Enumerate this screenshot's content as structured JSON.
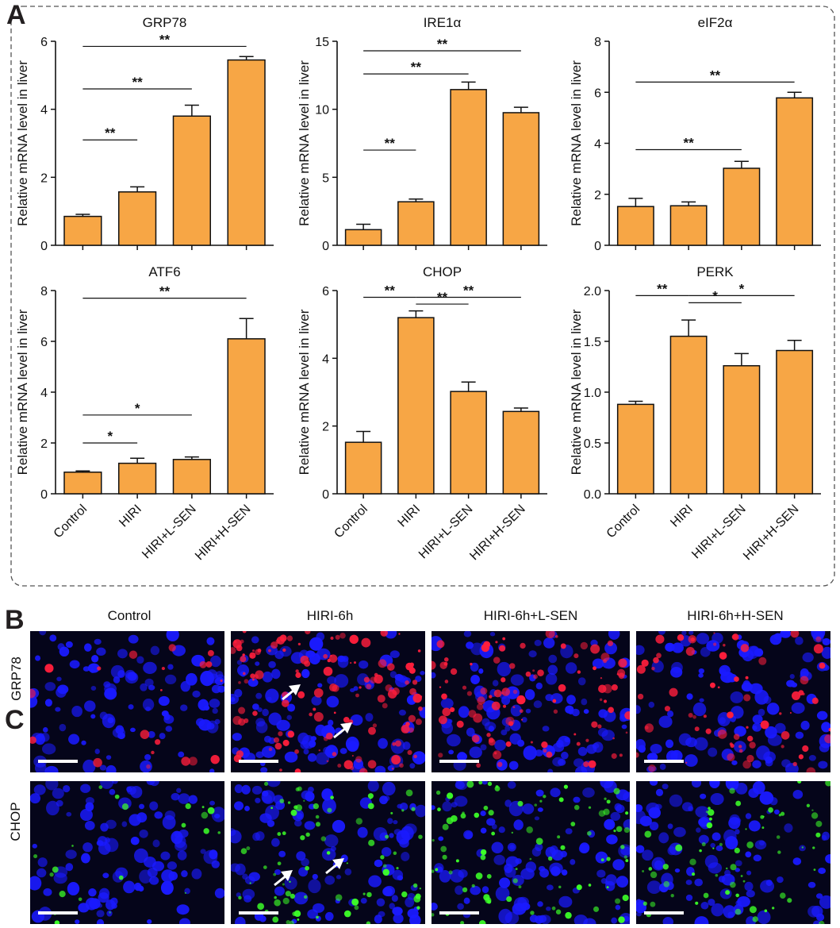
{
  "panels": {
    "A": "A",
    "B": "B",
    "C": "C"
  },
  "ylabel": "Relative  mRNA level in liver",
  "colors": {
    "bar": "#F7A645",
    "axis": "#111111",
    "border": "#555555"
  },
  "chart_data": [
    {
      "type": "bar",
      "title": "GRP78",
      "ylabel": "Relative  mRNA level in liver",
      "categories": [
        "Control",
        "HIRI",
        "HIRI+L-SEN",
        "HIRI+H-SEN"
      ],
      "values": [
        0.85,
        1.57,
        3.8,
        5.45
      ],
      "errors": [
        0.06,
        0.15,
        0.32,
        0.1
      ],
      "ylim": [
        0,
        6
      ],
      "yticks": [
        "0",
        "2",
        "4",
        "6"
      ],
      "ytick_values": [
        0,
        2,
        4,
        6
      ],
      "show_xlabels": false,
      "comparisons": [
        {
          "from": 0,
          "to": 1,
          "label": "**",
          "y": 3.1
        },
        {
          "from": 0,
          "to": 2,
          "label": "**",
          "y": 4.6
        },
        {
          "from": 0,
          "to": 3,
          "label": "**",
          "y": 5.85
        }
      ]
    },
    {
      "type": "bar",
      "title": "IRE1α",
      "ylabel": "Relative  mRNA level in liver",
      "categories": [
        "Control",
        "HIRI",
        "HIRI+L-SEN",
        "HIRI+H-SEN"
      ],
      "values": [
        1.15,
        3.2,
        11.45,
        9.75
      ],
      "errors": [
        0.4,
        0.2,
        0.55,
        0.4
      ],
      "ylim": [
        0,
        15
      ],
      "yticks": [
        "0",
        "5",
        "10",
        "15"
      ],
      "ytick_values": [
        0,
        5,
        10,
        15
      ],
      "show_xlabels": false,
      "comparisons": [
        {
          "from": 0,
          "to": 1,
          "label": "**",
          "y": 7.0
        },
        {
          "from": 0,
          "to": 2,
          "label": "**",
          "y": 12.6
        },
        {
          "from": 0,
          "to": 3,
          "label": "**",
          "y": 14.3
        }
      ]
    },
    {
      "type": "bar",
      "title": "eIF2α",
      "ylabel": "Relative  mRNA level in liver",
      "categories": [
        "Control",
        "HIRI",
        "HIRI+L-SEN",
        "HIRI+H-SEN"
      ],
      "values": [
        1.52,
        1.55,
        3.02,
        5.78
      ],
      "errors": [
        0.32,
        0.15,
        0.27,
        0.22
      ],
      "ylim": [
        0,
        8
      ],
      "yticks": [
        "0",
        "2",
        "4",
        "6",
        "8"
      ],
      "ytick_values": [
        0,
        2,
        4,
        6,
        8
      ],
      "show_xlabels": false,
      "comparisons": [
        {
          "from": 0,
          "to": 2,
          "label": "**",
          "y": 3.75
        },
        {
          "from": 0,
          "to": 3,
          "label": "**",
          "y": 6.4
        }
      ]
    },
    {
      "type": "bar",
      "title": "ATF6",
      "ylabel": "Relative  mRNA level in liver",
      "categories": [
        "Control",
        "HIRI",
        "HIRI+L-SEN",
        "HIRI+H-SEN"
      ],
      "values": [
        0.85,
        1.2,
        1.35,
        6.1
      ],
      "errors": [
        0.05,
        0.2,
        0.1,
        0.8
      ],
      "ylim": [
        0,
        8
      ],
      "yticks": [
        "0",
        "2",
        "4",
        "6",
        "8"
      ],
      "ytick_values": [
        0,
        2,
        4,
        6,
        8
      ],
      "show_xlabels": true,
      "comparisons": [
        {
          "from": 0,
          "to": 1,
          "label": "*",
          "y": 2.0
        },
        {
          "from": 0,
          "to": 2,
          "label": "*",
          "y": 3.1
        },
        {
          "from": 0,
          "to": 3,
          "label": "**",
          "y": 7.7
        }
      ]
    },
    {
      "type": "bar",
      "title": "CHOP",
      "ylabel": "Relative  mRNA level in liver",
      "categories": [
        "Control",
        "HIRI",
        "HIRI+L-SEN",
        "HIRI+H-SEN"
      ],
      "values": [
        1.52,
        5.2,
        3.02,
        2.43
      ],
      "errors": [
        0.32,
        0.2,
        0.28,
        0.1
      ],
      "ylim": [
        0,
        6
      ],
      "yticks": [
        "0",
        "2",
        "4",
        "6"
      ],
      "ytick_values": [
        0,
        2,
        4,
        6
      ],
      "show_xlabels": true,
      "comparisons": [
        {
          "from": 0,
          "to": 1,
          "label": "**",
          "y": 5.8
        },
        {
          "from": 1,
          "to": 2,
          "label": "**",
          "y": 5.6
        },
        {
          "from": 1,
          "to": 3,
          "label": "**",
          "y": 5.8
        }
      ]
    },
    {
      "type": "bar",
      "title": "PERK",
      "ylabel": "Relative  mRNA level in liver",
      "categories": [
        "Control",
        "HIRI",
        "HIRI+L-SEN",
        "HIRI+H-SEN"
      ],
      "values": [
        0.88,
        1.55,
        1.26,
        1.41
      ],
      "errors": [
        0.03,
        0.16,
        0.12,
        0.1
      ],
      "ylim": [
        0,
        2.0
      ],
      "yticks": [
        "0.0",
        "0.5",
        "1.0",
        "1.5",
        "2.0"
      ],
      "ytick_values": [
        0,
        0.5,
        1.0,
        1.5,
        2.0
      ],
      "show_xlabels": true,
      "comparisons": [
        {
          "from": 0,
          "to": 1,
          "label": "**",
          "y": 1.95
        },
        {
          "from": 1,
          "to": 2,
          "label": "*",
          "y": 1.88
        },
        {
          "from": 1,
          "to": 3,
          "label": "*",
          "y": 1.95
        }
      ]
    }
  ],
  "micrographs": {
    "columns": [
      "Control",
      "HIRI-6h",
      "HIRI-6h+L-SEN",
      "HIRI-6h+H-SEN"
    ],
    "rows": [
      {
        "label": "GRP78",
        "stain_color": "#ff1e3c",
        "nuclei_color": "#1a1aff"
      },
      {
        "label": "CHOP",
        "stain_color": "#3cff28",
        "nuclei_color": "#1a1aff"
      }
    ]
  }
}
